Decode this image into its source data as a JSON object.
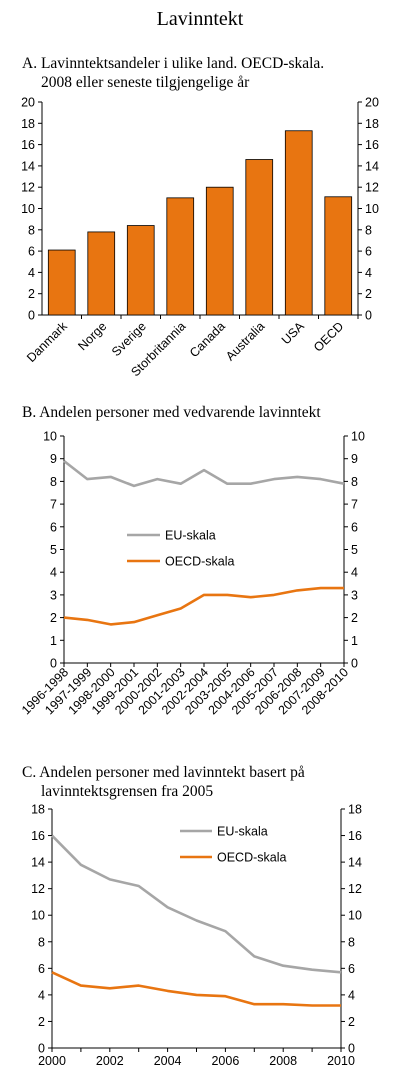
{
  "title": "Lavinntekt",
  "chart_data": [
    {
      "type": "bar",
      "title": "A.  Lavinntektsandeler i ulike land. OECD-skala.",
      "subtitle": "2008 eller seneste tilgjengelige år",
      "categories": [
        "Danmark",
        "Norge",
        "Sverige",
        "Storbritannia",
        "Canada",
        "Australia",
        "USA",
        "OECD"
      ],
      "values": [
        6.1,
        7.8,
        8.4,
        11.0,
        12.0,
        14.6,
        17.3,
        11.1
      ],
      "ylim": [
        0,
        20
      ],
      "yticks": [
        0,
        2,
        4,
        6,
        8,
        10,
        12,
        14,
        16,
        18,
        20
      ],
      "color": "#e87511",
      "grid": false
    },
    {
      "type": "line",
      "title": "B.  Andelen personer med vedvarende lavinntekt",
      "categories": [
        "1996-1998",
        "1997-1999",
        "1998-2000",
        "1999-2001",
        "2000-2002",
        "2001-2003",
        "2002-2004",
        "2003-2005",
        "2004-2006",
        "2005-2007",
        "2006-2008",
        "2007-2009",
        "2008-2010"
      ],
      "series": [
        {
          "name": "EU-skala",
          "color": "#a6a6a6",
          "values": [
            8.9,
            8.1,
            8.2,
            7.8,
            8.1,
            7.9,
            8.5,
            7.9,
            7.9,
            8.1,
            8.2,
            8.1,
            7.9
          ]
        },
        {
          "name": "OECD-skala",
          "color": "#e87511",
          "values": [
            2.0,
            1.9,
            1.7,
            1.8,
            2.1,
            2.4,
            3.0,
            3.0,
            2.9,
            3.0,
            3.2,
            3.3,
            3.3
          ]
        }
      ],
      "ylim": [
        0,
        10
      ],
      "yticks": [
        0,
        1,
        2,
        3,
        4,
        5,
        6,
        7,
        8,
        9,
        10
      ],
      "legend": "center-left",
      "grid": false
    },
    {
      "type": "line",
      "title": "C.  Andelen personer med lavinntekt basert på",
      "subtitle": "lavinntektsgrensen fra 2005",
      "x": [
        2000,
        2001,
        2002,
        2003,
        2004,
        2005,
        2006,
        2007,
        2008,
        2009,
        2010
      ],
      "xticks": [
        2000,
        2002,
        2004,
        2006,
        2008,
        2010
      ],
      "series": [
        {
          "name": "EU-skala",
          "color": "#a6a6a6",
          "values": [
            16.0,
            13.8,
            12.7,
            12.2,
            10.6,
            9.6,
            8.8,
            6.9,
            6.2,
            5.9,
            5.7
          ]
        },
        {
          "name": "OECD-skala",
          "color": "#e87511",
          "values": [
            5.7,
            4.7,
            4.5,
            4.7,
            4.3,
            4.0,
            3.9,
            3.3,
            3.3,
            3.2,
            3.2
          ]
        }
      ],
      "ylim": [
        0,
        18
      ],
      "yticks": [
        0,
        2,
        4,
        6,
        8,
        10,
        12,
        14,
        16,
        18
      ],
      "legend": "top-center",
      "grid": false
    }
  ]
}
